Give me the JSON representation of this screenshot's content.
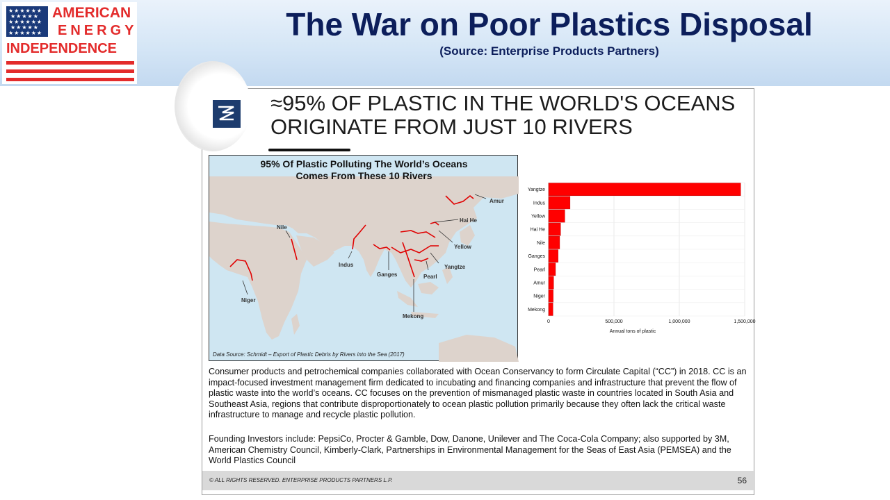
{
  "header": {
    "logo_line1": "AMERICAN",
    "logo_line2": "ENERGY",
    "logo_line3": "INDEPENDENCE",
    "title": "The War on Poor Plastics Disposal",
    "subtitle": "(Source: Enterprise Products Partners)"
  },
  "slide": {
    "title_line1": "≈95% OF PLASTIC IN THE WORLD'S OCEANS",
    "title_line2": "ORIGINATE FROM JUST 10 RIVERS",
    "paragraph1": "Consumer products and petrochemical companies collaborated with Ocean Conservancy to form Circulate Capital (“CC”) in 2018. CC is an impact-focused investment management firm dedicated to incubating and financing companies and infrastructure that prevent the flow of plastic waste into the world’s oceans.  CC focuses on the prevention of mismanaged plastic waste in countries located in South Asia and Southeast Asia, regions that contribute disproportionately to ocean plastic pollution primarily because they often lack the critical waste infrastructure to manage and recycle plastic pollution.",
    "paragraph2": "Founding Investors include: PepsiCo, Procter & Gamble, Dow, Danone, Unilever and The Coca-Cola Company; also supported by 3M, American Chemistry Council, Kimberly-Clark, Partnerships in Environmental Management for the Seas of East Asia (PEMSEA) and the World Plastics Council",
    "footer_copyright": "© ALL RIGHTS RESERVED. ENTERPRISE PRODUCTS PARTNERS L.P.",
    "page_number": "56"
  },
  "map": {
    "title_line1": "95% Of Plastic Polluting The World’s Oceans",
    "title_line2": "Comes From These 10 Rivers",
    "source": "Data Source:  Schmidt – Export of Plastic Debris by Rivers into the Sea (2017)",
    "labels": [
      "Amur",
      "Hai He",
      "Nile",
      "Yellow",
      "Indus",
      "Yangtze",
      "Ganges",
      "Pearl",
      "Niger",
      "Mekong"
    ]
  },
  "colors": {
    "bar": "#ff0000",
    "title_navy": "#0c1e5b",
    "logo_red": "#e32b2b",
    "water": "#cfe6f2",
    "land": "#ddd3cc"
  },
  "chart_data": {
    "type": "bar",
    "orientation": "horizontal",
    "categories": [
      "Yangtze",
      "Indus",
      "Yellow",
      "Hai He",
      "Nile",
      "Ganges",
      "Pearl",
      "Amur",
      "Niger",
      "Mekong"
    ],
    "values": [
      1469481,
      164332,
      124249,
      91858,
      84792,
      72845,
      52958,
      38267,
      35196,
      33431
    ],
    "xlabel": "Annual tons of plastic",
    "ylabel": "",
    "xlim": [
      0,
      1500000
    ],
    "xticks": [
      0,
      500000,
      1000000,
      1500000
    ],
    "xtick_labels": [
      "0",
      "500,000",
      "1,000,000",
      "1,500,000"
    ],
    "grid": true
  }
}
